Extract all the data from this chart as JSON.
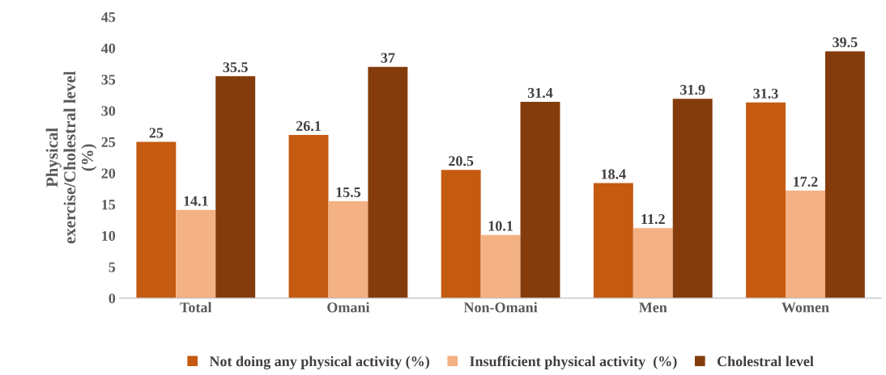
{
  "chart_data": {
    "type": "bar",
    "categories": [
      "Total",
      "Omani",
      "Non-Omani",
      "Men",
      "Women"
    ],
    "ylabel": "Physical\nexercise/Cholestral level\n(%)",
    "series": [
      {
        "name": "Not doing any physical activity (%)",
        "color": "#c55a11",
        "values": [
          25,
          26.1,
          20.5,
          18.4,
          31.3
        ]
      },
      {
        "name": "Insufficient physical activity  (%)",
        "color": "#f4b183",
        "values": [
          14.1,
          15.5,
          10.1,
          11.2,
          17.2
        ]
      },
      {
        "name": "Cholestral level",
        "color": "#843c0c",
        "values": [
          35.5,
          37,
          31.4,
          31.9,
          39.5
        ]
      }
    ],
    "ylim": [
      0,
      45
    ],
    "yticks": [
      0,
      5,
      10,
      15,
      20,
      25,
      30,
      35,
      40,
      45
    ],
    "data_labels": true,
    "grid": false,
    "legend": "bottom"
  }
}
